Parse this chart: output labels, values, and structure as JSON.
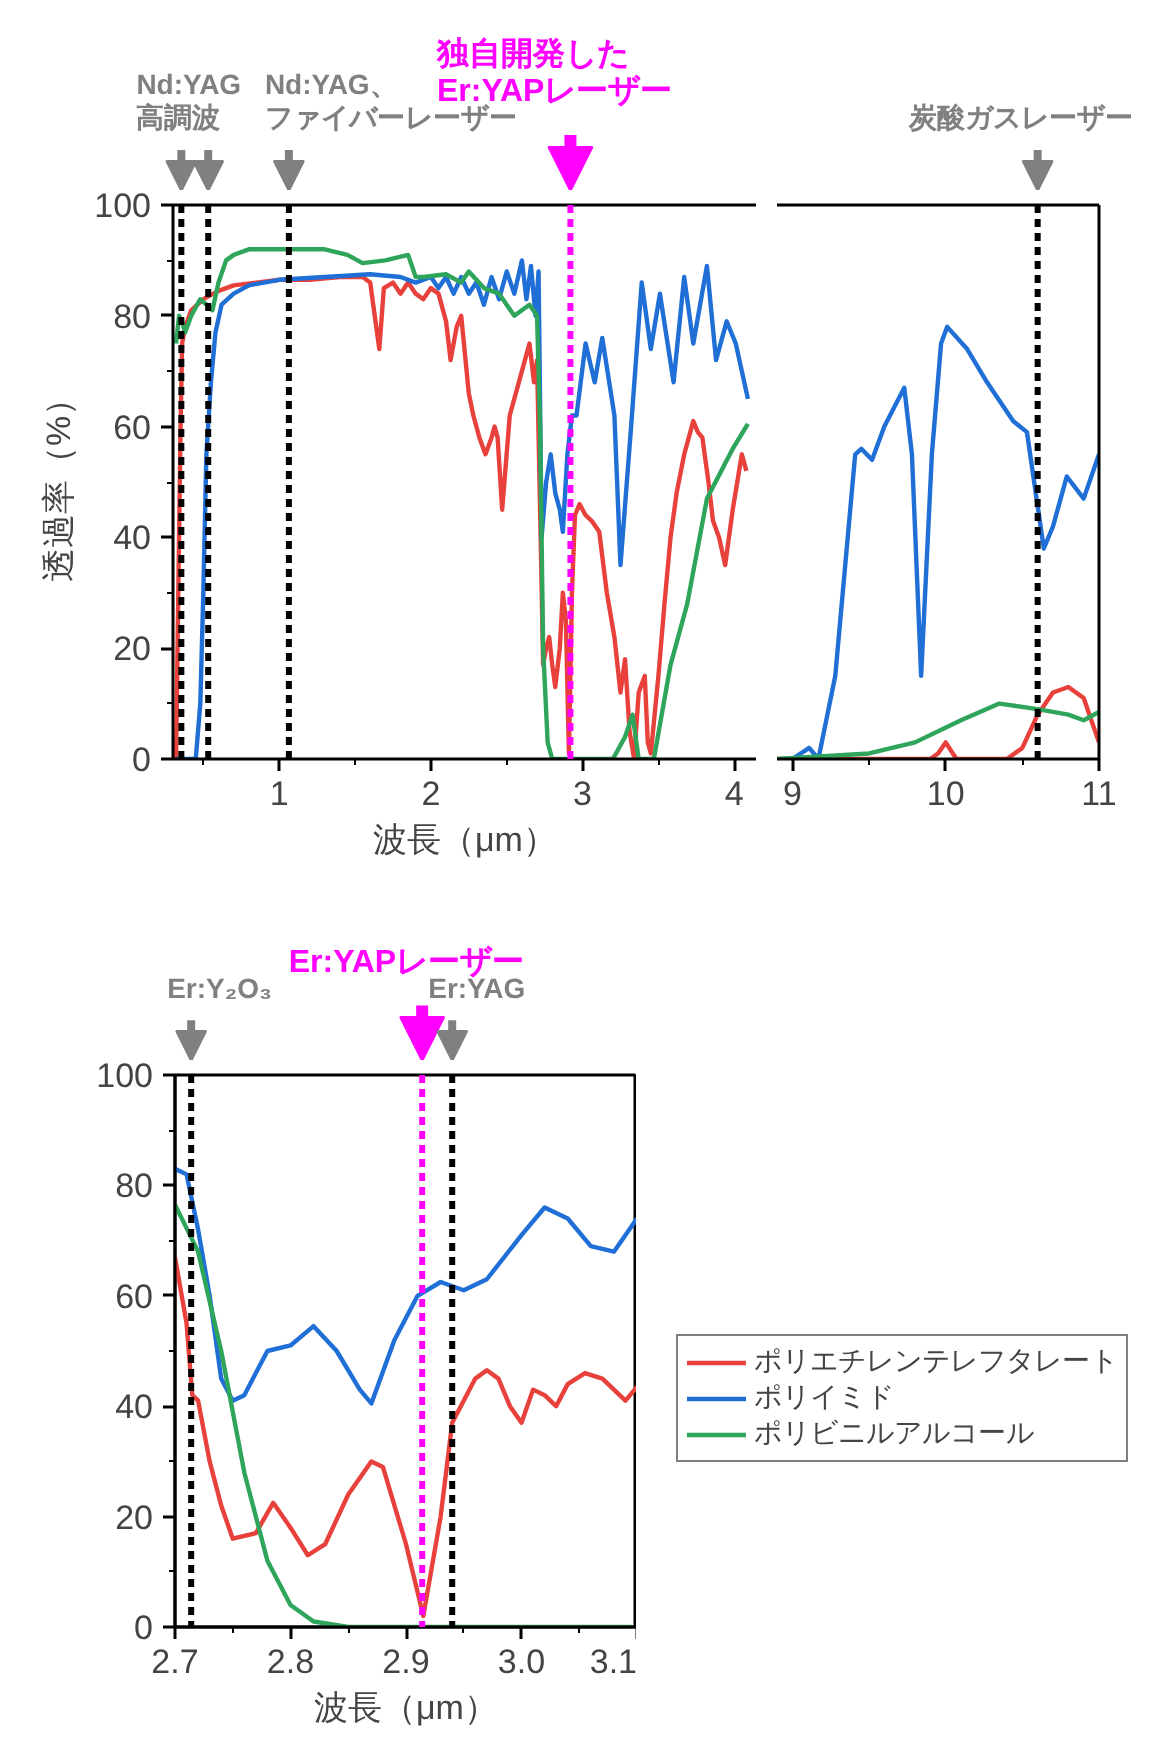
{
  "chart_data": [
    {
      "type": "line",
      "ylabel": "透過率（%）",
      "xlabel": "波長（μm）",
      "xlim": [
        0.3,
        4.15
      ],
      "xticks": [
        1,
        2,
        3,
        4
      ],
      "ylim": [
        0,
        100
      ],
      "yticks": [
        0,
        20,
        40,
        60,
        80,
        100
      ],
      "series": [
        {
          "color": "#e8413c",
          "x": [
            0.32,
            0.335,
            0.35,
            0.36,
            0.38,
            0.42,
            0.5,
            0.6,
            0.7,
            0.85,
            1.0,
            1.2,
            1.4,
            1.55,
            1.6,
            1.63,
            1.66,
            1.69,
            1.75,
            1.8,
            1.85,
            1.9,
            1.95,
            2.0,
            2.05,
            2.1,
            2.13,
            2.17,
            2.2,
            2.25,
            2.28,
            2.32,
            2.36,
            2.4,
            2.42,
            2.44,
            2.47,
            2.52,
            2.57,
            2.62,
            2.65,
            2.68,
            2.7,
            2.72,
            2.74,
            2.76,
            2.78,
            2.8,
            2.82,
            2.85,
            2.87,
            2.89,
            2.91,
            2.93,
            2.95,
            2.98,
            3.02,
            3.06,
            3.11,
            3.16,
            3.21,
            3.25,
            3.28,
            3.31,
            3.34,
            3.37,
            3.41,
            3.43,
            3.45,
            3.5,
            3.54,
            3.58,
            3.62,
            3.67,
            3.73,
            3.76,
            3.79,
            3.83,
            3.86,
            3.9,
            3.94,
            3.99,
            4.05,
            4.08
          ],
          "values": [
            0,
            30,
            60,
            75,
            78,
            81,
            83,
            84.5,
            85.5,
            86,
            86.5,
            86.5,
            87,
            87,
            86,
            80,
            74,
            85,
            86,
            84,
            86,
            84,
            83,
            85,
            84,
            79,
            72,
            78,
            80,
            66,
            62,
            58,
            55,
            58,
            60,
            58,
            45,
            62,
            67,
            72,
            75,
            68,
            72,
            45,
            17,
            20,
            22,
            17,
            13,
            20,
            30,
            25,
            1,
            30,
            44,
            46,
            44,
            43,
            41,
            30,
            22,
            12,
            18,
            5,
            0,
            12,
            15,
            3,
            1,
            15,
            28,
            40,
            48,
            55,
            61,
            59,
            58,
            50,
            43,
            40,
            35,
            45,
            55,
            52
          ]
        },
        {
          "color": "#1f6fd6",
          "x": [
            0.32,
            0.45,
            0.48,
            0.5,
            0.52,
            0.55,
            0.58,
            0.62,
            0.7,
            0.8,
            0.9,
            1.0,
            1.3,
            1.6,
            1.8,
            1.9,
            2.0,
            2.05,
            2.1,
            2.15,
            2.2,
            2.25,
            2.3,
            2.35,
            2.4,
            2.45,
            2.5,
            2.55,
            2.6,
            2.63,
            2.66,
            2.69,
            2.71,
            2.73,
            2.76,
            2.79,
            2.82,
            2.85,
            2.87,
            2.9,
            2.93,
            2.96,
            3.02,
            3.08,
            3.13,
            3.21,
            3.25,
            3.32,
            3.39,
            3.45,
            3.51,
            3.6,
            3.67,
            3.73,
            3.82,
            3.88,
            3.95,
            4.01,
            4.09
          ],
          "values": [
            0,
            0,
            10,
            30,
            55,
            68,
            77,
            82,
            84,
            85.5,
            86,
            86.5,
            87,
            87.5,
            87,
            86,
            87,
            85,
            87,
            84,
            87,
            84,
            86,
            82,
            87,
            83,
            88,
            84,
            90,
            83,
            89,
            80,
            88,
            40,
            50,
            55,
            48,
            45,
            41,
            55,
            62,
            62,
            75,
            68,
            76,
            62,
            35,
            60,
            86,
            74,
            84,
            68,
            87,
            75,
            89,
            72,
            79,
            75,
            65
          ]
        },
        {
          "color": "#2ea55a",
          "x": [
            0.32,
            0.34,
            0.36,
            0.38,
            0.42,
            0.48,
            0.52,
            0.56,
            0.6,
            0.65,
            0.7,
            0.8,
            1.0,
            1.3,
            1.45,
            1.55,
            1.7,
            1.85,
            1.9,
            1.95,
            2.1,
            2.2,
            2.25,
            2.35,
            2.45,
            2.55,
            2.65,
            2.7,
            2.72,
            2.74,
            2.77,
            2.8,
            3.0,
            3.2,
            3.28,
            3.33,
            3.37,
            3.47,
            3.58,
            3.69,
            3.82,
            3.99,
            4.09
          ],
          "values": [
            75,
            80,
            79,
            77,
            80,
            83,
            82,
            81,
            86,
            90,
            91,
            92,
            92,
            92,
            91,
            89.5,
            90,
            91,
            87,
            87,
            87.5,
            86,
            88,
            85,
            84,
            80,
            82,
            80,
            60,
            20,
            3,
            0,
            0,
            0,
            4,
            8,
            0,
            0,
            17,
            28,
            47,
            56,
            60.5
          ]
        }
      ],
      "ref_lines": [
        {
          "axis": "x",
          "value": 0.355,
          "label": "Nd:YAG高調波",
          "color": "#000000",
          "line_style": "dashed"
        },
        {
          "axis": "x",
          "value": 0.532,
          "label": null,
          "color": "#000000",
          "line_style": "dashed"
        },
        {
          "axis": "x",
          "value": 1.064,
          "label": "Nd:YAG、ファイバーレーザー",
          "color": "#000000",
          "line_style": "dashed"
        },
        {
          "axis": "x",
          "value": 2.92,
          "label": "独自開発したEr:YAPレーザー",
          "color": "#ff00ff",
          "line_style": "dashed"
        }
      ]
    },
    {
      "type": "line",
      "xlim": [
        8.9,
        11
      ],
      "xticks": [
        9,
        10,
        11
      ],
      "ylim": [
        0,
        100
      ],
      "yticks": [
        0,
        20,
        40,
        60,
        80,
        100
      ],
      "tick_labels": "x",
      "series": [
        {
          "color": "#e8413c",
          "x": [
            8.9,
            9.5,
            9.9,
            9.95,
            10.0,
            10.07,
            10.2,
            10.4,
            10.5,
            10.6,
            10.7,
            10.8,
            10.9,
            11.0
          ],
          "values": [
            0,
            0,
            0,
            1,
            3,
            0,
            0,
            0,
            2,
            8,
            12,
            13,
            11,
            3
          ]
        },
        {
          "color": "#1f6fd6",
          "x": [
            9.0,
            9.11,
            9.17,
            9.28,
            9.41,
            9.45,
            9.52,
            9.6,
            9.73,
            9.78,
            9.84,
            9.91,
            9.97,
            10.01,
            10.14,
            10.27,
            10.44,
            10.53,
            10.64,
            10.7,
            10.79,
            10.9,
            11.0
          ],
          "values": [
            0,
            2,
            0,
            15,
            55,
            56,
            54,
            60,
            67,
            55,
            15,
            55,
            75,
            78,
            74,
            68,
            61,
            59,
            38,
            42,
            51,
            47,
            55
          ]
        },
        {
          "color": "#2ea55a",
          "x": [
            8.9,
            9.5,
            9.8,
            10.1,
            10.35,
            10.6,
            10.8,
            10.9,
            11.0
          ],
          "values": [
            0,
            1,
            3,
            7,
            10,
            9,
            8,
            7,
            8.5
          ]
        }
      ],
      "ref_lines": [
        {
          "axis": "x",
          "value": 10.6,
          "label": "炭酸ガスレーザー",
          "color": "#000000",
          "line_style": "dashed"
        }
      ]
    },
    {
      "type": "line",
      "xlabel": "波長（μm）",
      "xlim": [
        2.7,
        3.1
      ],
      "xticks": [
        2.7,
        2.8,
        2.9,
        {
          "value": 3.0,
          "label": "3.0"
        },
        3.1
      ],
      "ylim": [
        0,
        100
      ],
      "yticks": [
        0,
        20,
        40,
        60,
        80,
        100
      ],
      "legend": "right",
      "series": [
        {
          "name": "ポリエチレンテレフタレート",
          "color": "#e8413c",
          "x": [
            2.7,
            2.71,
            2.715,
            2.72,
            2.73,
            2.74,
            2.75,
            2.77,
            2.785,
            2.8,
            2.815,
            2.83,
            2.85,
            2.87,
            2.88,
            2.9,
            2.915,
            2.93,
            2.94,
            2.96,
            2.97,
            2.98,
            2.99,
            3.0,
            3.01,
            3.02,
            3.03,
            3.04,
            3.055,
            3.07,
            3.08,
            3.09,
            3.1
          ],
          "values": [
            67,
            55,
            42,
            41,
            30,
            22,
            16,
            17,
            22.5,
            18,
            13,
            15,
            24,
            30,
            29,
            15,
            2,
            20,
            37,
            45,
            46.5,
            45,
            40,
            37,
            43,
            42,
            40,
            44,
            46,
            45,
            43,
            41,
            43.5
          ]
        },
        {
          "name": "ポリイミド",
          "color": "#1f6fd6",
          "x": [
            2.7,
            2.71,
            2.72,
            2.73,
            2.74,
            2.75,
            2.76,
            2.78,
            2.8,
            2.82,
            2.84,
            2.86,
            2.87,
            2.89,
            2.91,
            2.93,
            2.95,
            2.97,
            3.0,
            3.02,
            3.04,
            3.06,
            3.08,
            3.1
          ],
          "values": [
            83,
            82,
            72,
            60,
            45,
            41,
            42,
            50,
            51,
            54.5,
            50,
            43,
            40.5,
            52,
            60,
            62.5,
            61,
            63,
            71,
            76,
            74,
            69,
            68,
            74
          ]
        },
        {
          "name": "ポリビニルアルコール",
          "color": "#2ea55a",
          "x": [
            2.7,
            2.72,
            2.74,
            2.76,
            2.78,
            2.8,
            2.82,
            2.85,
            3.095
          ],
          "values": [
            76.5,
            68,
            50,
            28,
            12,
            4,
            1,
            0,
            0
          ]
        }
      ],
      "ref_lines": [
        {
          "axis": "x",
          "value": 2.714,
          "label": "Er:Y₂O₃",
          "color": "#000000",
          "line_style": "dashed"
        },
        {
          "axis": "x",
          "value": 2.914,
          "label": "Er:YAPレーザー",
          "color": "#ff00ff",
          "line_style": "dashed"
        },
        {
          "axis": "x",
          "value": 2.94,
          "label": "Er:YAG",
          "color": "#000000",
          "line_style": "dashed"
        }
      ]
    }
  ]
}
